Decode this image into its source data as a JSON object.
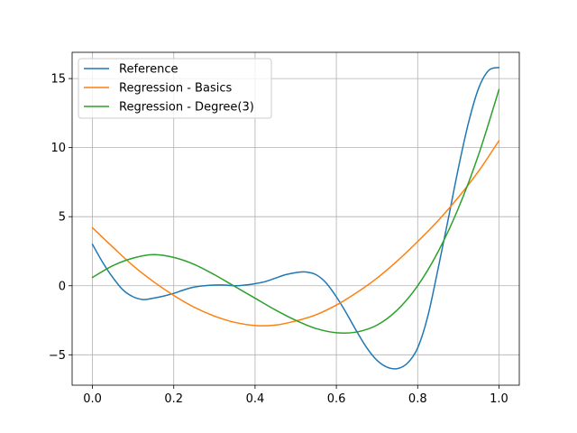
{
  "chart_data": {
    "type": "line",
    "title": "",
    "xlabel": "",
    "ylabel": "",
    "xlim": [
      -0.05,
      1.05
    ],
    "ylim": [
      -7.2,
      16.9
    ],
    "xticks": [
      0.0,
      0.2,
      0.4,
      0.6,
      0.8,
      1.0
    ],
    "xtick_labels": [
      "0.0",
      "0.2",
      "0.4",
      "0.6",
      "0.8",
      "1.0"
    ],
    "yticks": [
      -5,
      0,
      5,
      10,
      15
    ],
    "ytick_labels": [
      "−5",
      "0",
      "5",
      "10",
      "15"
    ],
    "grid": true,
    "legend_position": "top-left",
    "series": [
      {
        "name": "Reference",
        "color": "#1f77b4",
        "x": [
          0.0,
          0.025,
          0.05,
          0.075,
          0.1,
          0.125,
          0.15,
          0.175,
          0.2,
          0.225,
          0.25,
          0.275,
          0.3,
          0.325,
          0.35,
          0.375,
          0.4,
          0.425,
          0.45,
          0.475,
          0.5,
          0.525,
          0.55,
          0.575,
          0.6,
          0.625,
          0.65,
          0.675,
          0.7,
          0.725,
          0.75,
          0.775,
          0.8,
          0.825,
          0.85,
          0.875,
          0.9,
          0.925,
          0.95,
          0.975,
          1.0
        ],
        "y": [
          3.0,
          1.7,
          0.6,
          -0.3,
          -0.8,
          -1.0,
          -0.9,
          -0.75,
          -0.55,
          -0.3,
          -0.1,
          0.0,
          0.05,
          0.05,
          0.0,
          0.05,
          0.15,
          0.3,
          0.55,
          0.8,
          0.95,
          1.0,
          0.8,
          0.2,
          -0.8,
          -2.0,
          -3.3,
          -4.5,
          -5.4,
          -5.9,
          -6.0,
          -5.6,
          -4.5,
          -2.2,
          1.2,
          4.8,
          8.5,
          11.8,
          14.3,
          15.6,
          15.8
        ]
      },
      {
        "name": "Regression - Basics",
        "color": "#ff7f0e",
        "x": [
          0.0,
          0.05,
          0.1,
          0.15,
          0.2,
          0.25,
          0.3,
          0.35,
          0.4,
          0.45,
          0.5,
          0.55,
          0.6,
          0.65,
          0.7,
          0.75,
          0.8,
          0.85,
          0.9,
          0.95,
          1.0
        ],
        "y": [
          4.2,
          2.8,
          1.45,
          0.3,
          -0.7,
          -1.55,
          -2.2,
          -2.65,
          -2.88,
          -2.85,
          -2.55,
          -2.1,
          -1.4,
          -0.5,
          0.55,
          1.8,
          3.2,
          4.7,
          6.4,
          8.3,
          10.5
        ]
      },
      {
        "name": "Regression - Degree(3)",
        "color": "#2ca02c",
        "x": [
          0.0,
          0.05,
          0.1,
          0.15,
          0.2,
          0.25,
          0.3,
          0.35,
          0.4,
          0.45,
          0.5,
          0.55,
          0.6,
          0.65,
          0.7,
          0.75,
          0.8,
          0.85,
          0.9,
          0.95,
          1.0
        ],
        "y": [
          0.6,
          1.45,
          2.0,
          2.25,
          2.05,
          1.55,
          0.8,
          -0.05,
          -0.9,
          -1.75,
          -2.5,
          -3.1,
          -3.4,
          -3.35,
          -2.85,
          -1.75,
          0.0,
          2.45,
          5.6,
          9.5,
          14.2
        ]
      }
    ]
  }
}
